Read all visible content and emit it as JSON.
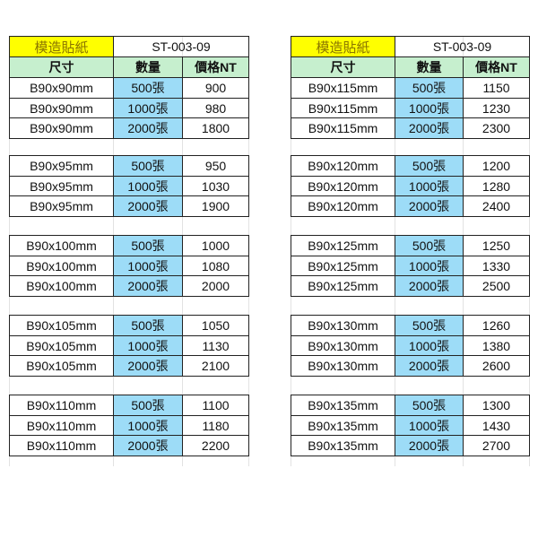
{
  "colors": {
    "title_bg": "#ffff00",
    "header_bg": "#c6efce",
    "qty_bg": "#9ddcf7"
  },
  "tables": [
    {
      "title": "模造貼紙",
      "code": "ST-003-09",
      "headers": [
        "尺寸",
        "數量",
        "價格NT"
      ],
      "groups": [
        {
          "size": "B90x90mm",
          "rows": [
            [
              "500張",
              "900"
            ],
            [
              "1000張",
              "980"
            ],
            [
              "2000張",
              "1800"
            ]
          ]
        },
        {
          "size": "B90x95mm",
          "rows": [
            [
              "500張",
              "950"
            ],
            [
              "1000張",
              "1030"
            ],
            [
              "2000張",
              "1900"
            ]
          ]
        },
        {
          "size": "B90x100mm",
          "rows": [
            [
              "500張",
              "1000"
            ],
            [
              "1000張",
              "1080"
            ],
            [
              "2000張",
              "2000"
            ]
          ]
        },
        {
          "size": "B90x105mm",
          "rows": [
            [
              "500張",
              "1050"
            ],
            [
              "1000張",
              "1130"
            ],
            [
              "2000張",
              "2100"
            ]
          ]
        },
        {
          "size": "B90x110mm",
          "rows": [
            [
              "500張",
              "1100"
            ],
            [
              "1000張",
              "1180"
            ],
            [
              "2000張",
              "2200"
            ]
          ]
        }
      ]
    },
    {
      "title": "模造貼紙",
      "code": "ST-003-09",
      "headers": [
        "尺寸",
        "數量",
        "價格NT"
      ],
      "groups": [
        {
          "size": "B90x115mm",
          "rows": [
            [
              "500張",
              "1150"
            ],
            [
              "1000張",
              "1230"
            ],
            [
              "2000張",
              "2300"
            ]
          ]
        },
        {
          "size": "B90x120mm",
          "rows": [
            [
              "500張",
              "1200"
            ],
            [
              "1000張",
              "1280"
            ],
            [
              "2000張",
              "2400"
            ]
          ]
        },
        {
          "size": "B90x125mm",
          "rows": [
            [
              "500張",
              "1250"
            ],
            [
              "1000張",
              "1330"
            ],
            [
              "2000張",
              "2500"
            ]
          ]
        },
        {
          "size": "B90x130mm",
          "rows": [
            [
              "500張",
              "1260"
            ],
            [
              "1000張",
              "1380"
            ],
            [
              "2000張",
              "2600"
            ]
          ]
        },
        {
          "size": "B90x135mm",
          "rows": [
            [
              "500張",
              "1300"
            ],
            [
              "1000張",
              "1430"
            ],
            [
              "2000張",
              "2700"
            ]
          ]
        }
      ]
    }
  ]
}
